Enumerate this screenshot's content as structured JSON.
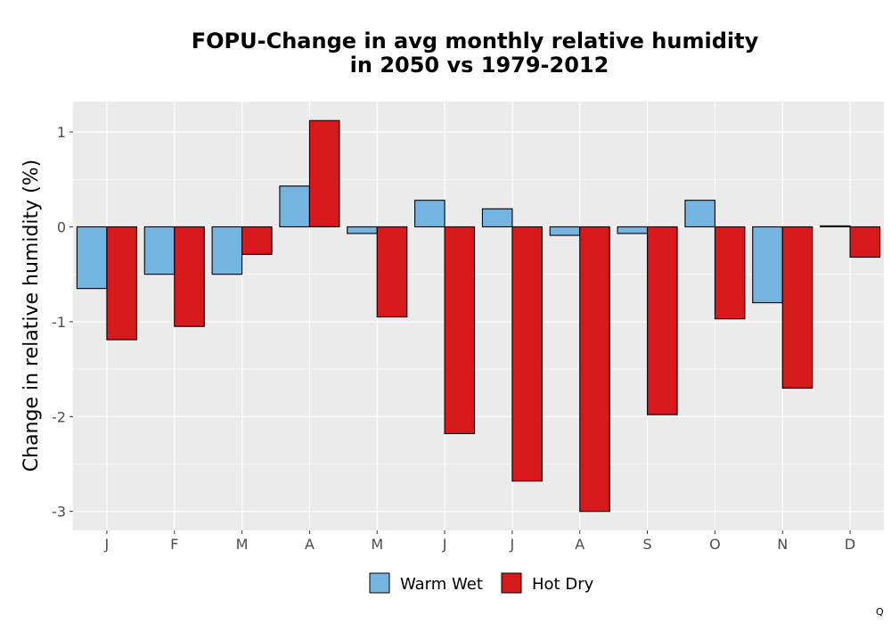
{
  "chart_data": {
    "type": "bar",
    "title_lines": [
      "FOPU-Change in avg monthly relative humidity",
      "in 2050 vs 1979-2012"
    ],
    "xlabel": "",
    "ylabel": "Change in relative humidity (%)",
    "categories": [
      "J",
      "F",
      "M",
      "A",
      "M",
      "J",
      "J",
      "A",
      "S",
      "O",
      "N",
      "D"
    ],
    "series": [
      {
        "name": "Warm Wet",
        "color": "#74b4e0",
        "values": [
          -0.65,
          -0.5,
          -0.5,
          0.43,
          -0.07,
          0.28,
          0.19,
          -0.09,
          -0.07,
          0.28,
          -0.8,
          0.01
        ]
      },
      {
        "name": "Hot Dry",
        "color": "#d7191c",
        "values": [
          -1.19,
          -1.05,
          -0.29,
          1.12,
          -0.95,
          -2.18,
          -2.68,
          -3.0,
          -1.98,
          -0.97,
          -1.7,
          -0.32
        ]
      }
    ],
    "ylim": [
      -3.2,
      1.32
    ],
    "yticks": [
      1,
      0,
      -1,
      -2,
      -3
    ],
    "ytick_labels": [
      "1",
      "0",
      "-1",
      "-2",
      "-3"
    ],
    "grid": true,
    "legend_position": "bottom",
    "panel_background": "#ebebeb",
    "corner_mark": "Q"
  }
}
